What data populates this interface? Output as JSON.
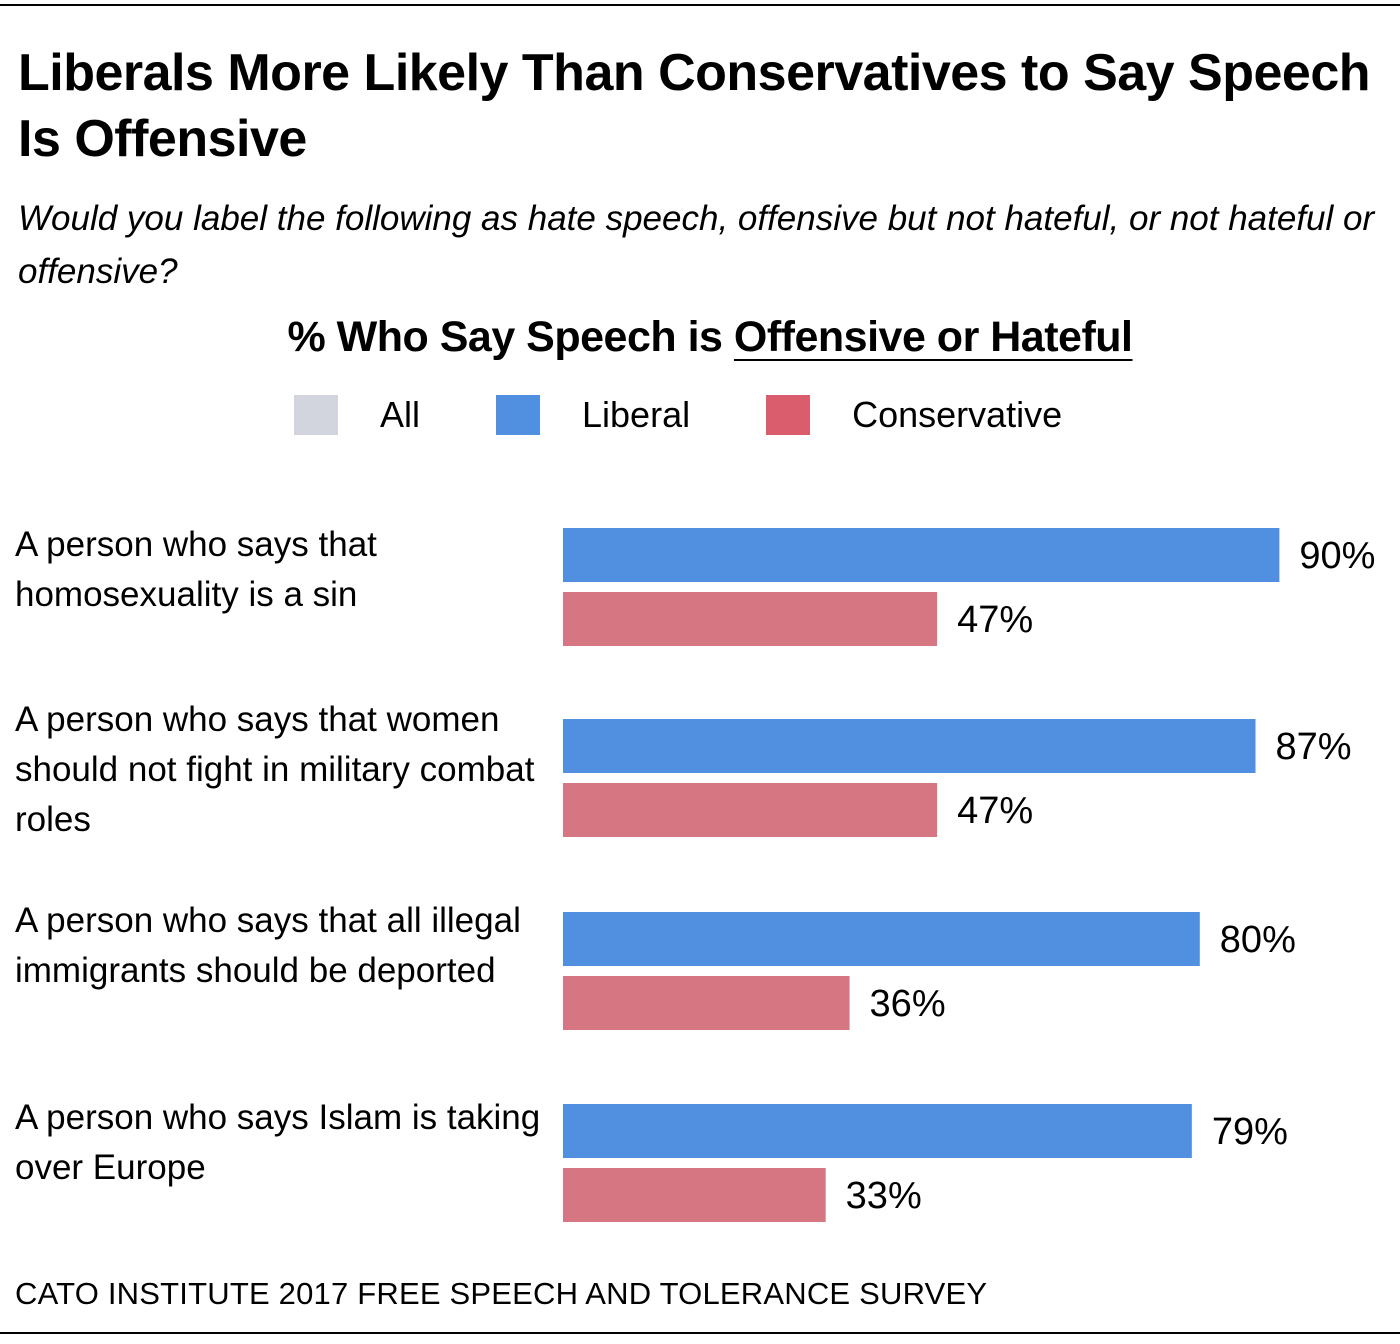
{
  "chart_data": {
    "type": "bar",
    "orientation": "horizontal",
    "title": "Liberals More Likely Than Conservatives to Say Speech Is Offensive",
    "subtitle": "Would you label the following as hate speech, offensive but not hateful, or not hateful or offensive?",
    "heading_prefix": "% Who Say Speech is ",
    "heading_emphasis": "Offensive or Hateful",
    "legend": [
      {
        "name": "All",
        "color": "#d2d5dd"
      },
      {
        "name": "Liberal",
        "color": "#518fe0"
      },
      {
        "name": "Conservative",
        "color": "#d95d6d"
      }
    ],
    "categories": [
      "A person who says that homosexuality is a sin",
      "A person who says that women should not fight in military combat roles",
      "A person who says that all illegal immigrants should be deported",
      "A person who says Islam is taking over Europe"
    ],
    "series": [
      {
        "name": "Liberal",
        "color": "#518fe0",
        "values": [
          90,
          87,
          80,
          79
        ],
        "labels": [
          "90%",
          "87%",
          "80%",
          "79%"
        ]
      },
      {
        "name": "Conservative",
        "color": "#d77683",
        "values": [
          47,
          47,
          36,
          33
        ],
        "labels": [
          "47%",
          "47%",
          "36%",
          "33%"
        ]
      }
    ],
    "xlim": [
      0,
      100
    ],
    "grid": false,
    "legend_position": "top-center",
    "source": "CATO INSTITUTE 2017 FREE SPEECH AND TOLERANCE SURVEY"
  }
}
